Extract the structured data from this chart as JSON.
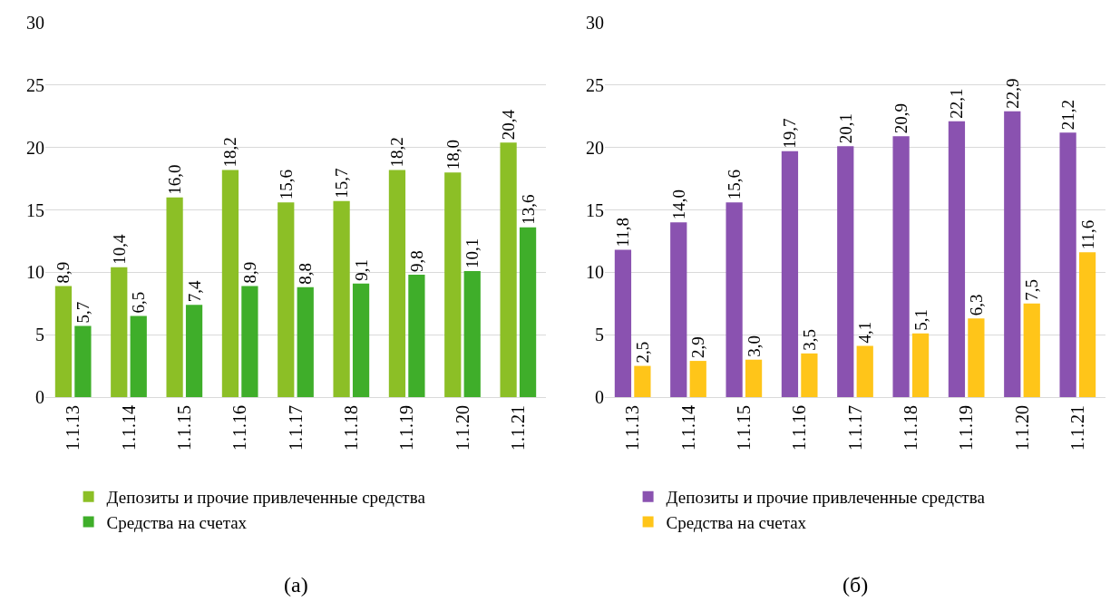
{
  "chart_data": [
    {
      "type": "bar",
      "categories": [
        "1.1.13",
        "1.1.14",
        "1.1.15",
        "1.1.16",
        "1.1.17",
        "1.1.18",
        "1.1.19",
        "1.1.20",
        "1.1.21"
      ],
      "ylim": [
        0,
        30
      ],
      "yticks": [
        0,
        5,
        10,
        15,
        20,
        25,
        30
      ],
      "grid": "y",
      "legend": "bottom",
      "annotations": [
        "(а)"
      ],
      "series": [
        {
          "name": "Депозиты и прочие привлеченные средства",
          "color": "#8cbf26",
          "values": [
            8.9,
            10.4,
            16.0,
            18.2,
            15.6,
            15.7,
            18.2,
            18.0,
            20.4
          ],
          "value_labels": [
            "8,9",
            "10,4",
            "16,0",
            "18,2",
            "15,6",
            "15,7",
            "18,2",
            "18,0",
            "20,4"
          ]
        },
        {
          "name": "Средства на счетах",
          "color": "#3fae2a",
          "values": [
            5.7,
            6.5,
            7.4,
            8.9,
            8.8,
            9.1,
            9.8,
            10.1,
            13.6
          ],
          "value_labels": [
            "5,7",
            "6,5",
            "7,4",
            "8,9",
            "8,8",
            "9,1",
            "9,8",
            "10,1",
            "13,6"
          ]
        }
      ]
    },
    {
      "type": "bar",
      "categories": [
        "1.1.13",
        "1.1.14",
        "1.1.15",
        "1.1.16",
        "1.1.17",
        "1.1.18",
        "1.1.19",
        "1.1.20",
        "1.1.21"
      ],
      "ylim": [
        0,
        30
      ],
      "yticks": [
        0,
        5,
        10,
        15,
        20,
        25,
        30
      ],
      "grid": "y",
      "legend": "bottom",
      "annotations": [
        "(б)"
      ],
      "series": [
        {
          "name": "Депозиты и прочие привлеченные средства",
          "color": "#8a52b0",
          "values": [
            11.8,
            14.0,
            15.6,
            19.7,
            20.1,
            20.9,
            22.1,
            22.9,
            21.2
          ],
          "value_labels": [
            "11,8",
            "14,0",
            "15,6",
            "19,7",
            "20,1",
            "20,9",
            "22,1",
            "22,9",
            "21,2"
          ]
        },
        {
          "name": "Средства на счетах",
          "color": "#ffc519",
          "values": [
            2.5,
            2.9,
            3.0,
            3.5,
            4.1,
            5.1,
            6.3,
            7.5,
            11.6
          ],
          "value_labels": [
            "2,5",
            "2,9",
            "3,0",
            "3,5",
            "4,1",
            "5,1",
            "6,3",
            "7,5",
            "11,6"
          ]
        }
      ]
    }
  ]
}
